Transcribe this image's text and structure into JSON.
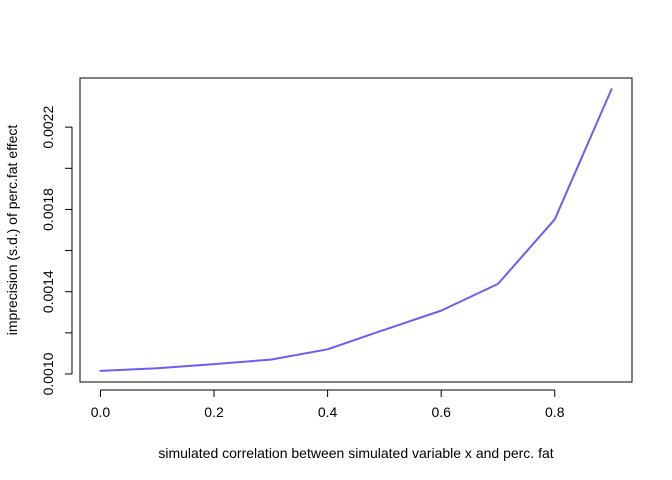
{
  "chart_data": {
    "type": "line",
    "title": "",
    "xlabel": "simulated correlation between simulated variable x and perc. fat",
    "ylabel": "imprecision (s.d.) of perc.fat effect",
    "x": [
      0.0,
      0.1,
      0.2,
      0.3,
      0.4,
      0.5,
      0.6,
      0.7,
      0.8,
      0.9
    ],
    "series": [
      {
        "values": [
          0.001015,
          0.001028,
          0.001048,
          0.00107,
          0.00112,
          0.001215,
          0.001308,
          0.001438,
          0.001752,
          0.002385
        ],
        "color": "#6b5ff0"
      }
    ],
    "xlim": [
      -0.036,
      0.936
    ],
    "ylim": [
      0.000961,
      0.002439
    ],
    "xticks": [
      "0.0",
      "0.2",
      "0.4",
      "0.6",
      "0.8"
    ],
    "xtick_values": [
      0.0,
      0.2,
      0.4,
      0.6,
      0.8
    ],
    "yticks": [
      "0.0010",
      "0.0014",
      "0.0018",
      "0.0022"
    ],
    "ytick_values": [
      0.001,
      0.0014,
      0.0018,
      0.0022
    ],
    "yminor_values": [
      0.0012,
      0.0016,
      0.002
    ],
    "grid": false,
    "legend": "none"
  }
}
